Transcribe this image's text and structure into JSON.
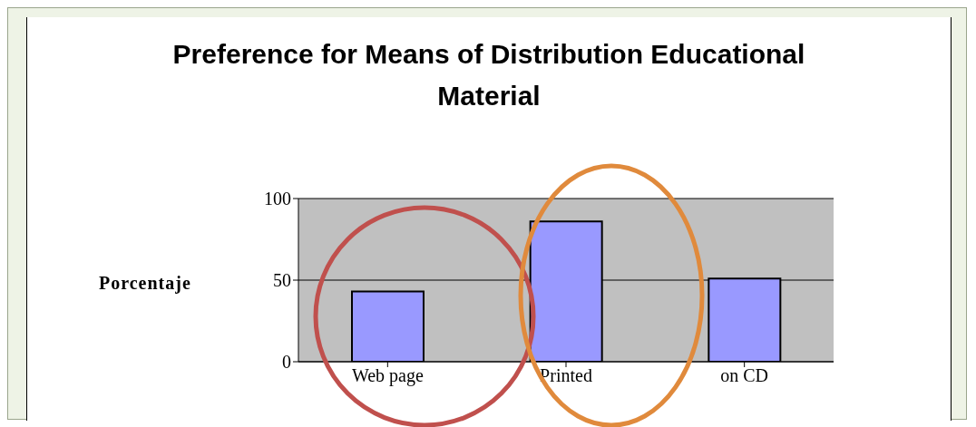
{
  "chart_data": {
    "type": "bar",
    "title": "Preference for Means of Distribution Educational Material",
    "ylabel": "Porcentaje",
    "categories": [
      "Web page",
      "Printed",
      "on CD"
    ],
    "values": [
      43,
      86,
      51
    ],
    "color": "#9999ff",
    "ylim": [
      0,
      100
    ],
    "yticks": [
      0,
      50,
      100
    ],
    "grid": "y"
  }
}
